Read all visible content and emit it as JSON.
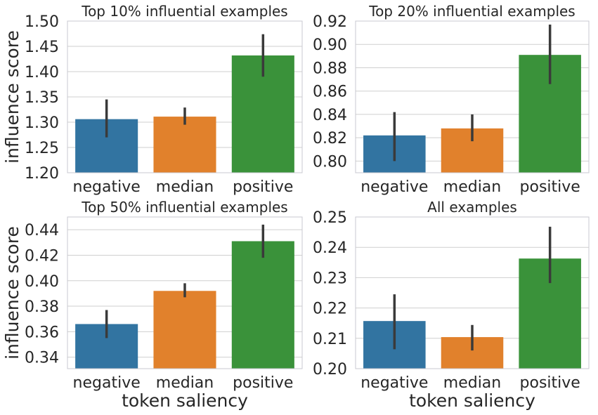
{
  "chart_data": [
    {
      "type": "bar",
      "title": "Top 10% influential examples",
      "categories": [
        "negative",
        "median",
        "positive"
      ],
      "values": [
        1.306,
        1.311,
        1.432
      ],
      "error_low": [
        1.27,
        1.295,
        1.39
      ],
      "error_high": [
        1.345,
        1.329,
        1.474
      ],
      "colors": [
        "#3274a1",
        "#e1812c",
        "#3a923a"
      ],
      "ylim": [
        1.2,
        1.5
      ],
      "yticks": [
        "1.20",
        "1.25",
        "1.30",
        "1.35",
        "1.40",
        "1.45",
        "1.50"
      ],
      "ylabel": "influence score",
      "xlabel": ""
    },
    {
      "type": "bar",
      "title": "Top 20% influential examples",
      "categories": [
        "negative",
        "median",
        "positive"
      ],
      "values": [
        0.822,
        0.828,
        0.891
      ],
      "error_low": [
        0.8,
        0.817,
        0.866
      ],
      "error_high": [
        0.842,
        0.84,
        0.917
      ],
      "colors": [
        "#3274a1",
        "#e1812c",
        "#3a923a"
      ],
      "ylim": [
        0.79,
        0.92
      ],
      "yticks": [
        "0.80",
        "0.82",
        "0.84",
        "0.86",
        "0.88",
        "0.90",
        "0.92"
      ],
      "ylabel": "",
      "xlabel": ""
    },
    {
      "type": "bar",
      "title": "Top 50% influential examples",
      "categories": [
        "negative",
        "median",
        "positive"
      ],
      "values": [
        0.366,
        0.392,
        0.431
      ],
      "error_low": [
        0.355,
        0.387,
        0.418
      ],
      "error_high": [
        0.377,
        0.398,
        0.444
      ],
      "colors": [
        "#3274a1",
        "#e1812c",
        "#3a923a"
      ],
      "ylim": [
        0.331,
        0.45
      ],
      "yticks": [
        "0.34",
        "0.36",
        "0.38",
        "0.40",
        "0.42",
        "0.44"
      ],
      "ylabel": "influence score",
      "xlabel": "token saliency"
    },
    {
      "type": "bar",
      "title": "All examples",
      "categories": [
        "negative",
        "median",
        "positive"
      ],
      "values": [
        0.2157,
        0.2104,
        0.2363
      ],
      "error_low": [
        0.2064,
        0.206,
        0.2282
      ],
      "error_high": [
        0.2245,
        0.2144,
        0.2468
      ],
      "colors": [
        "#3274a1",
        "#e1812c",
        "#3a923a"
      ],
      "ylim": [
        0.2,
        0.25
      ],
      "yticks": [
        "0.20",
        "0.21",
        "0.22",
        "0.23",
        "0.24",
        "0.25"
      ],
      "ylabel": "",
      "xlabel": "token saliency"
    }
  ]
}
